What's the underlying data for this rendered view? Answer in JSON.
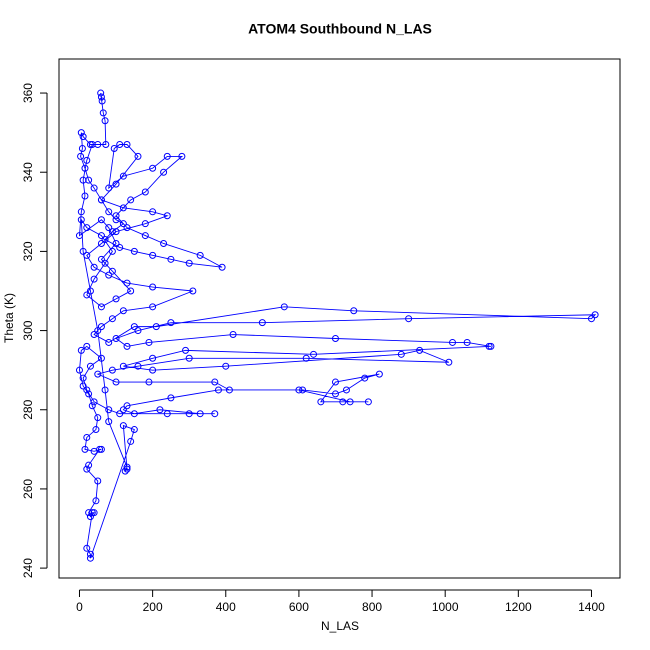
{
  "chart_data": {
    "type": "line",
    "markers": true,
    "color": "#0000ff",
    "title": "ATOM4 Southbound N_LAS",
    "xlabel": "N_LAS",
    "ylabel": "Theta (K)",
    "xlim": [
      -56,
      1478
    ],
    "ylim": [
      237.5,
      368.6
    ],
    "xticks": [
      0,
      200,
      400,
      600,
      800,
      1000,
      1200,
      1400
    ],
    "yticks": [
      240,
      260,
      280,
      300,
      320,
      340,
      360
    ],
    "x": [
      60,
      62,
      58,
      65,
      70,
      72,
      50,
      30,
      10,
      5,
      8,
      3,
      15,
      25,
      40,
      60,
      80,
      100,
      120,
      90,
      70,
      110,
      150,
      200,
      250,
      300,
      390,
      330,
      230,
      180,
      130,
      100,
      140,
      180,
      230,
      280,
      240,
      200,
      120,
      80,
      95,
      110,
      130,
      160,
      100,
      60,
      120,
      200,
      240,
      180,
      100,
      60,
      20,
      40,
      80,
      130,
      200,
      310,
      200,
      120,
      90,
      60,
      40,
      80,
      150,
      210,
      560,
      750,
      1400,
      1410,
      900,
      500,
      250,
      160,
      100,
      130,
      190,
      420,
      700,
      1020,
      1060,
      1125,
      1120,
      640,
      290,
      200,
      120,
      200,
      400,
      880,
      930,
      1010,
      620,
      300,
      160,
      90,
      50,
      100,
      190,
      370,
      410,
      610,
      700,
      730,
      780,
      820,
      700,
      660,
      720,
      790,
      740,
      600,
      380,
      250,
      130,
      120,
      150,
      220,
      330,
      370,
      300,
      240,
      110,
      80,
      40,
      20,
      10,
      30,
      60,
      20,
      5,
      0,
      10,
      25,
      35,
      50,
      45,
      20,
      15,
      40,
      60,
      55,
      25,
      20,
      50,
      45,
      25,
      30,
      40,
      35,
      20,
      30,
      30,
      140,
      150,
      120,
      130,
      125,
      130,
      80,
      70,
      50,
      30,
      10,
      5,
      20,
      60,
      90,
      70,
      40,
      20,
      60,
      100,
      140,
      90,
      60,
      100,
      80,
      60,
      0,
      5,
      15,
      10,
      20,
      35
    ],
    "values": [
      359,
      358,
      360,
      355,
      353,
      347,
      347,
      347,
      349,
      350,
      346,
      344,
      341,
      338,
      336,
      333,
      330,
      328,
      327,
      325,
      323,
      321,
      320,
      319,
      318,
      317,
      316,
      319,
      322,
      324,
      326,
      329,
      333,
      335,
      340,
      344,
      344,
      341,
      339,
      336,
      346,
      347,
      347,
      344,
      337,
      333,
      331,
      330,
      329,
      327,
      325,
      322,
      319,
      316,
      314,
      312,
      311,
      310,
      306,
      305,
      303,
      301,
      299,
      297,
      301,
      301,
      306,
      305,
      303,
      304,
      303,
      302,
      302,
      300,
      298,
      296,
      297,
      299,
      298,
      297,
      297,
      296,
      296,
      294,
      295,
      293,
      291,
      290,
      291,
      294,
      295,
      292,
      293,
      293,
      291,
      290,
      289,
      287,
      287,
      287,
      285,
      285,
      284,
      285,
      288,
      289,
      287,
      282,
      282,
      282,
      282,
      285,
      285,
      283,
      281,
      280,
      279,
      280,
      279,
      279,
      279,
      279,
      279,
      280,
      282,
      285,
      288,
      291,
      293,
      296,
      295,
      290,
      286,
      284,
      281,
      278,
      275,
      273,
      270,
      269.5,
      270,
      270,
      266,
      265,
      262,
      257,
      254,
      253,
      254,
      254,
      245,
      243.5,
      242.5,
      272,
      275,
      276,
      265,
      264.5,
      265.5,
      277,
      285,
      300,
      310,
      320,
      328,
      326,
      324,
      320,
      317,
      313,
      309,
      306,
      308,
      310,
      315,
      318,
      322,
      326,
      328,
      324,
      330,
      334,
      338,
      343,
      347
    ]
  }
}
